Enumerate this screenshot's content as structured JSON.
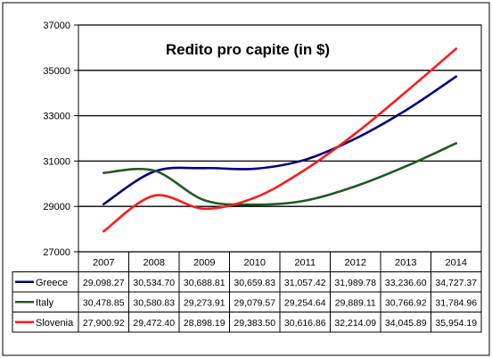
{
  "chart_data": {
    "type": "line",
    "title": "Redito pro capite (in $)",
    "xlabel": "",
    "ylabel": "",
    "categories": [
      "2007",
      "2008",
      "2009",
      "2010",
      "2011",
      "2012",
      "2013",
      "2014"
    ],
    "ylim": [
      27000,
      37000
    ],
    "yticks": [
      "27000",
      "29000",
      "31000",
      "33000",
      "35000",
      "37000"
    ],
    "grid": true,
    "legend": "data-table",
    "series": [
      {
        "name": "Greece",
        "color": "#000080",
        "values": [
          29098.27,
          30534.7,
          30688.81,
          30659.83,
          31057.42,
          31989.78,
          33236.6,
          34727.37
        ],
        "labels": [
          "29,098.27",
          "30,534.70",
          "30,688.81",
          "30,659.83",
          "31,057.42",
          "31,989.78",
          "33,236.60",
          "34,727.37"
        ]
      },
      {
        "name": "Italy",
        "color": "#1f5b1f",
        "values": [
          30478.85,
          30580.83,
          29273.91,
          29079.57,
          29254.64,
          29889.11,
          30766.92,
          31784.96
        ],
        "labels": [
          "30,478.85",
          "30,580.83",
          "29,273.91",
          "29,079.57",
          "29,254.64",
          "29,889.11",
          "30,766.92",
          "31,784.96"
        ]
      },
      {
        "name": "Slovenia",
        "color": "#ff1a1a",
        "values": [
          27900.92,
          29472.4,
          28898.19,
          29383.5,
          30616.86,
          32214.09,
          34045.89,
          35954.19
        ],
        "labels": [
          "27,900.92",
          "29,472.40",
          "28,898.19",
          "29,383.50",
          "30,616.86",
          "32,214.09",
          "34,045.89",
          "35,954.19"
        ]
      }
    ]
  }
}
